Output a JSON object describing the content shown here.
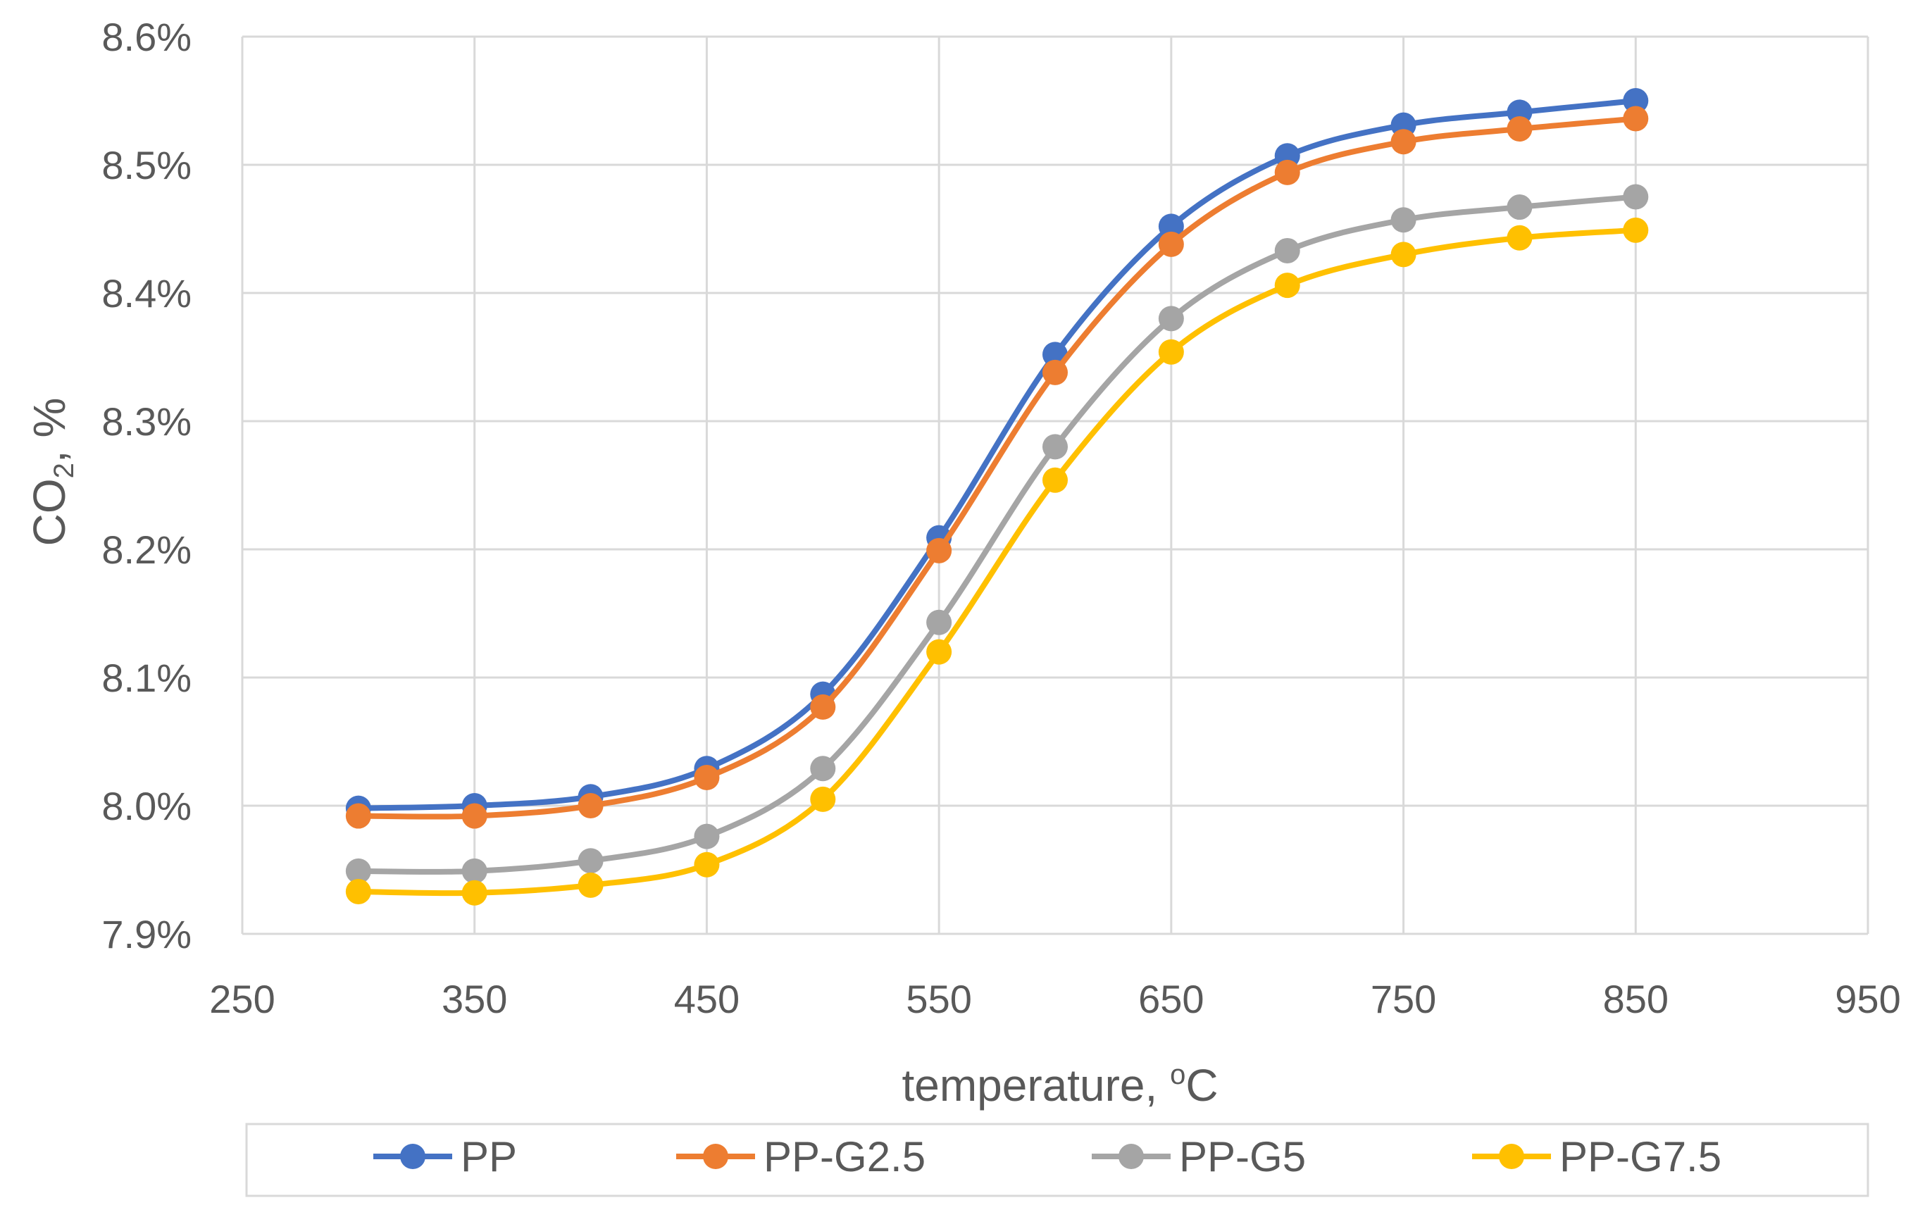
{
  "chart_data": {
    "type": "line",
    "title": "",
    "xlabel": {
      "main": "temperature, ",
      "sup": "o",
      "tail": "C"
    },
    "ylabel": {
      "main": "CO",
      "sub": "2",
      "tail": ", %"
    },
    "xlim": [
      250,
      950
    ],
    "ylim": [
      7.9,
      8.6
    ],
    "x_ticks": [
      250,
      350,
      450,
      550,
      650,
      750,
      850,
      950
    ],
    "y_ticks": [
      7.9,
      8.0,
      8.1,
      8.2,
      8.3,
      8.4,
      8.5,
      8.6
    ],
    "y_tick_labels": [
      "7.9%",
      "8.0%",
      "8.1%",
      "8.2%",
      "8.3%",
      "8.4%",
      "8.5%",
      "8.6%"
    ],
    "x_grid": [
      250,
      350,
      450,
      550,
      650,
      750,
      850,
      950
    ],
    "grid": true,
    "legend_position": "bottom",
    "x": [
      300,
      350,
      400,
      450,
      500,
      550,
      600,
      650,
      700,
      750,
      800,
      850
    ],
    "series": [
      {
        "name": "PP",
        "color": "#4472C4",
        "values": [
          7.998,
          8.0,
          8.007,
          8.029,
          8.087,
          8.209,
          8.352,
          8.452,
          8.507,
          8.531,
          8.541,
          8.55
        ]
      },
      {
        "name": "PP-G2.5",
        "color": "#ED7D31",
        "values": [
          7.992,
          7.992,
          8.0,
          8.022,
          8.077,
          8.199,
          8.338,
          8.438,
          8.494,
          8.518,
          8.528,
          8.536
        ]
      },
      {
        "name": "PP-G5",
        "color": "#A5A5A5",
        "values": [
          7.949,
          7.949,
          7.957,
          7.976,
          8.029,
          8.143,
          8.28,
          8.38,
          8.433,
          8.457,
          8.467,
          8.475
        ]
      },
      {
        "name": "PP-G7.5",
        "color": "#FFC000",
        "values": [
          7.933,
          7.932,
          7.938,
          7.954,
          8.005,
          8.12,
          8.254,
          8.354,
          8.406,
          8.43,
          8.443,
          8.449
        ]
      }
    ]
  }
}
